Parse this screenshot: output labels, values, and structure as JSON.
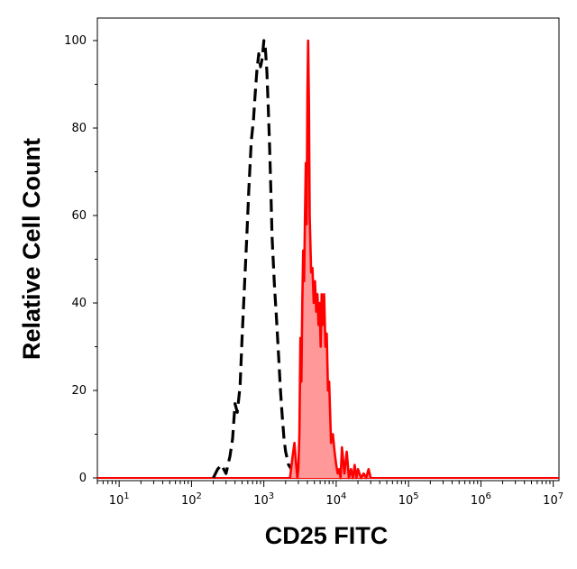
{
  "chart_data": {
    "type": "area",
    "title": "",
    "xlabel": "CD25 FITC",
    "ylabel": "Relative Cell Count",
    "x_scale": "log",
    "xlim": [
      5,
      12000000
    ],
    "ylim": [
      0,
      105
    ],
    "grid": false,
    "legend": "none",
    "x_ticks": [
      {
        "value": 10,
        "base": "10",
        "exp": "1"
      },
      {
        "value": 100,
        "base": "10",
        "exp": "2"
      },
      {
        "value": 1000,
        "base": "10",
        "exp": "3"
      },
      {
        "value": 10000,
        "base": "10",
        "exp": "4"
      },
      {
        "value": 100000,
        "base": "10",
        "exp": "5"
      },
      {
        "value": 1000000,
        "base": "10",
        "exp": "6"
      },
      {
        "value": 10000000,
        "base": "10",
        "exp": "7"
      }
    ],
    "y_ticks": [
      "0",
      "20",
      "40",
      "60",
      "80",
      "100"
    ],
    "series": [
      {
        "style": "dashed",
        "color": "#000000",
        "fill": "none",
        "x": [
          200,
          230,
          260,
          300,
          340,
          370,
          400,
          430,
          470,
          500,
          540,
          580,
          620,
          670,
          720,
          760,
          800,
          850,
          900,
          950,
          1000,
          1050,
          1100,
          1150,
          1200,
          1250,
          1300,
          1400,
          1500,
          1600,
          1700,
          1800,
          1900,
          2000,
          2200,
          2400,
          2600,
          2800,
          3000
        ],
        "y": [
          0,
          2,
          3,
          1,
          5,
          9,
          17,
          15,
          21,
          32,
          44,
          55,
          66,
          77,
          82,
          88,
          93,
          97,
          94,
          96,
          100,
          98,
          93,
          85,
          76,
          66,
          55,
          44,
          36,
          28,
          20,
          14,
          9,
          6,
          3,
          2,
          1,
          0.5,
          0
        ]
      },
      {
        "style": "solid",
        "color": "#ff0000",
        "fill": "#ff9999",
        "x": [
          2300,
          2500,
          2650,
          2800,
          2900,
          3000,
          3100,
          3200,
          3300,
          3400,
          3500,
          3600,
          3700,
          3800,
          3900,
          4000,
          4100,
          4200,
          4300,
          4500,
          4700,
          4900,
          5100,
          5300,
          5500,
          5700,
          5900,
          6100,
          6300,
          6500,
          6800,
          7100,
          7400,
          7700,
          8000,
          8500,
          9000,
          9500,
          10000,
          10500,
          11000,
          11500,
          12000,
          13000,
          14000,
          15000,
          16000,
          17000,
          18000,
          19000,
          20000,
          22000,
          24000,
          26000,
          28000,
          30000
        ],
        "y": [
          0,
          5,
          8,
          3,
          0,
          2,
          10,
          32,
          22,
          40,
          52,
          45,
          60,
          72,
          58,
          88,
          100,
          85,
          60,
          47,
          48,
          40,
          45,
          38,
          42,
          35,
          40,
          30,
          42,
          35,
          42,
          30,
          33,
          20,
          22,
          8,
          10,
          6,
          3,
          1,
          2,
          0,
          7,
          1,
          6,
          0,
          2,
          0,
          3,
          0,
          2,
          0,
          1,
          0,
          2,
          0
        ]
      }
    ]
  }
}
